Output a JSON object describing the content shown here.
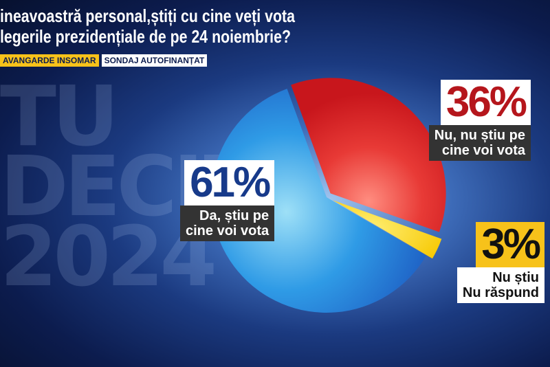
{
  "header": {
    "title_line1": "ineavoastră personal,știți cu cine veți vota",
    "title_line2": "legerile prezidențiale de pe 24 noiembrie?",
    "source_tag": "AVANGARDE INSOMAR",
    "funding_tag": "SONDAJ AUTOFINANȚAT"
  },
  "background_text": "TU\nDECIZI\n2024",
  "chart_data": {
    "type": "pie",
    "title": "",
    "slices": [
      {
        "label": "Nu, nu știu pe cine voi vota",
        "value": 36,
        "display": "36%",
        "color": "#e02a2a"
      },
      {
        "label": "Nu știu Nu răspund",
        "value": 3,
        "display": "3%",
        "color": "#f7d000"
      },
      {
        "label": "Da, știu pe cine voi vota",
        "value": 61,
        "display": "61%",
        "color": "#2f8be0"
      }
    ]
  },
  "labels": {
    "red_pct": "36%",
    "red_text": "Nu, nu știu pe\ncine voi vota",
    "yellow_pct": "3%",
    "yellow_text": "Nu știu\nNu răspund",
    "blue_pct": "61%",
    "blue_text": "Da, știu pe\ncine voi vota"
  }
}
